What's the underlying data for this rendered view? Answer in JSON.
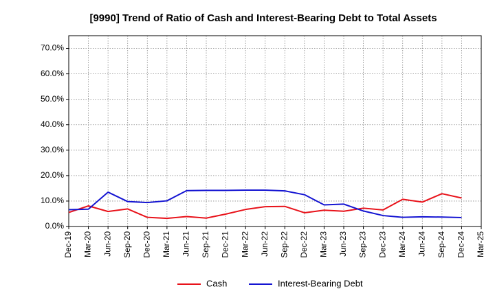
{
  "chart_data": {
    "type": "line",
    "title": "[9990]  Trend of Ratio of Cash and Interest-Bearing Debt to Total Assets",
    "xlabel": "",
    "ylabel": "",
    "x": [
      "Dec-19",
      "Mar-20",
      "Jun-20",
      "Sep-20",
      "Dec-20",
      "Mar-21",
      "Jun-21",
      "Sep-21",
      "Dec-21",
      "Mar-22",
      "Jun-22",
      "Sep-22",
      "Dec-22",
      "Mar-23",
      "Jun-23",
      "Sep-23",
      "Dec-23",
      "Mar-24",
      "Jun-24",
      "Sep-24",
      "Dec-24",
      "Mar-25"
    ],
    "yticks": [
      "0.0%",
      "10.0%",
      "20.0%",
      "30.0%",
      "40.0%",
      "50.0%",
      "60.0%",
      "70.0%"
    ],
    "ylim": [
      0,
      75
    ],
    "grid": true,
    "legend_position": "bottom",
    "series": [
      {
        "name": "Cash",
        "color": "#e8121a",
        "values": [
          5.5,
          8.1,
          5.9,
          6.9,
          3.6,
          3.2,
          3.9,
          3.3,
          4.9,
          6.7,
          7.8,
          7.9,
          5.4,
          6.4,
          6.0,
          7.2,
          6.5,
          10.7,
          9.6,
          12.9,
          11.2,
          null
        ]
      },
      {
        "name": "Interest-Bearing Debt",
        "color": "#1414d2",
        "values": [
          6.6,
          6.8,
          13.5,
          9.8,
          9.4,
          10.1,
          14.1,
          14.2,
          14.2,
          14.3,
          14.3,
          14.0,
          12.5,
          8.5,
          8.8,
          6.1,
          4.3,
          3.6,
          3.8,
          3.7,
          3.5,
          null
        ]
      }
    ]
  }
}
